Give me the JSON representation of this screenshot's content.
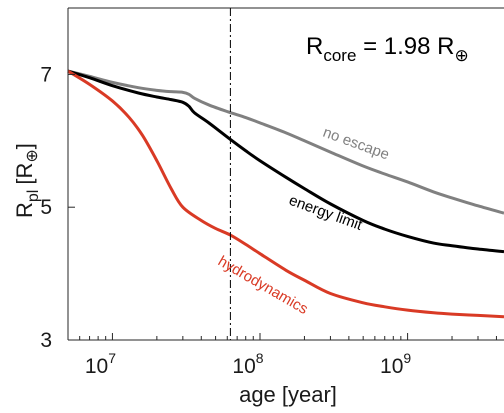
{
  "chart_data": {
    "type": "line",
    "xlabel": "age [year]",
    "ylabel": "R",
    "ylabel_sub": "pl",
    "ylabel_unit": "[R",
    "ylabel_unit_end": "]",
    "x_scale": "log",
    "xlim": [
      5000000,
      4500000000
    ],
    "ylim": [
      3,
      8
    ],
    "x_ticks": [
      {
        "value": 10000000,
        "base": "10",
        "exp": "7"
      },
      {
        "value": 100000000,
        "base": "10",
        "exp": "8"
      },
      {
        "value": 1000000000,
        "base": "10",
        "exp": "9"
      }
    ],
    "y_ticks": [
      3,
      5,
      7
    ],
    "grid": false,
    "annotation": {
      "prefix": "R",
      "sub": "core",
      "mid": " = 1.98 R",
      "symbol": "⊕"
    },
    "vertical_line": {
      "x": 63000000,
      "style": "dash-dot"
    },
    "series": [
      {
        "name": "no escape",
        "color": "#808080",
        "x": [
          5000000,
          7000000,
          10000000,
          15000000,
          20000000,
          25000000,
          30000000,
          33000000,
          36000000,
          45000000,
          60000000,
          80000000,
          100000000,
          150000000,
          200000000,
          300000000,
          500000000,
          700000000,
          1000000000,
          1500000000,
          2000000000,
          3000000000,
          4500000000
        ],
        "y": [
          7.05,
          6.97,
          6.88,
          6.8,
          6.76,
          6.74,
          6.73,
          6.7,
          6.64,
          6.54,
          6.44,
          6.35,
          6.27,
          6.12,
          6.0,
          5.83,
          5.62,
          5.5,
          5.38,
          5.23,
          5.14,
          5.02,
          4.91
        ]
      },
      {
        "name": "energy limit",
        "color": "#000000",
        "x": [
          5000000,
          7000000,
          10000000,
          15000000,
          20000000,
          25000000,
          30000000,
          33000000,
          36000000,
          45000000,
          63000000,
          80000000,
          100000000,
          150000000,
          200000000,
          300000000,
          500000000,
          700000000,
          1000000000,
          1500000000,
          2000000000,
          3000000000,
          4500000000
        ],
        "y": [
          7.05,
          6.95,
          6.83,
          6.72,
          6.66,
          6.62,
          6.58,
          6.52,
          6.42,
          6.27,
          6.02,
          5.85,
          5.7,
          5.45,
          5.28,
          5.05,
          4.8,
          4.67,
          4.56,
          4.46,
          4.42,
          4.37,
          4.33
        ]
      },
      {
        "name": "hydrodynamics",
        "color": "#d93a25",
        "x": [
          5000000,
          7000000,
          10000000,
          13000000,
          16000000,
          20000000,
          25000000,
          30000000,
          40000000,
          50000000,
          63000000,
          80000000,
          100000000,
          150000000,
          200000000,
          300000000,
          500000000,
          700000000,
          1000000000,
          1500000000,
          2000000000,
          3000000000,
          4500000000
        ],
        "y": [
          7.05,
          6.85,
          6.6,
          6.35,
          6.08,
          5.7,
          5.28,
          5.0,
          4.8,
          4.68,
          4.58,
          4.44,
          4.3,
          4.05,
          3.9,
          3.7,
          3.56,
          3.5,
          3.45,
          3.41,
          3.39,
          3.37,
          3.35
        ]
      }
    ]
  }
}
